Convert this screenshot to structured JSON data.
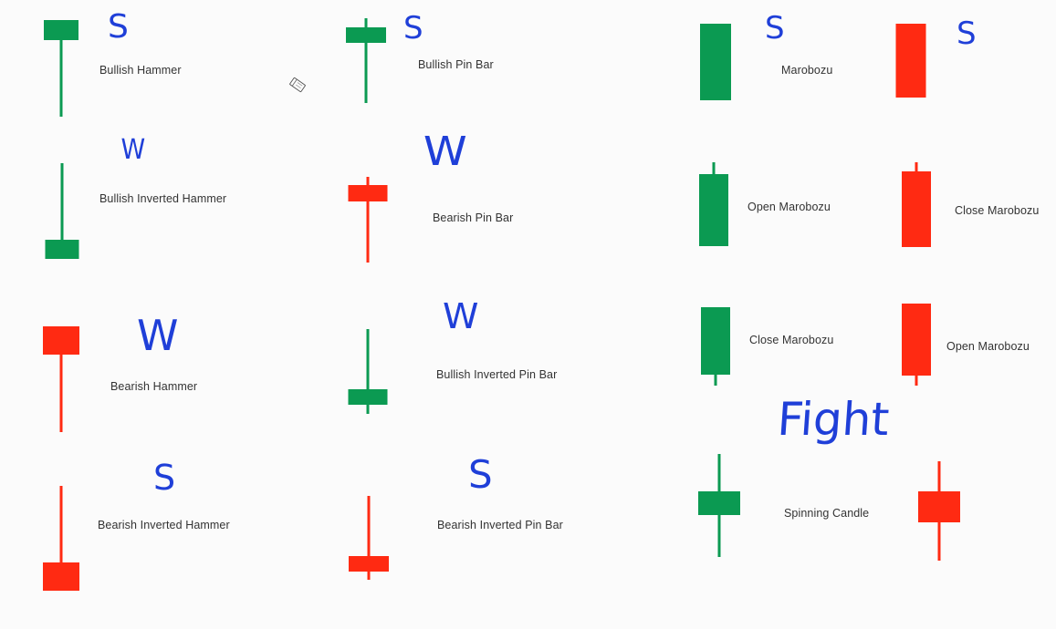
{
  "colors": {
    "bullish": "#0b9a52",
    "bearish": "#ff2a12",
    "ink": "#1f3fd8",
    "text": "#333333",
    "background": "#fbfbfb"
  },
  "labels": {
    "bullish_hammer": "Bullish Hammer",
    "bullish_pin_bar": "Bullish Pin Bar",
    "marobozu": "Marobozu",
    "bullish_inverted_hammer": "Bullish Inverted Hammer",
    "bearish_pin_bar": "Bearish Pin Bar",
    "open_marobozu_1": "Open Marobozu",
    "close_marobozu_1": "Close Marobozu",
    "bearish_hammer": "Bearish Hammer",
    "bullish_inverted_pin_bar": "Bullish Inverted Pin Bar",
    "close_marobozu_2": "Close Marobozu",
    "open_marobozu_2": "Open Marobozu",
    "bearish_inverted_hammer": "Bearish Inverted Hammer",
    "bearish_inverted_pin_bar": "Bearish Inverted Pin Bar",
    "spinning_candle": "Spinning Candle"
  },
  "annotations": {
    "a1": "S",
    "a2": "S",
    "a3": "S",
    "a4": "S",
    "a5": "W",
    "a6": "W",
    "a7": "W",
    "a8": "W",
    "a9": "S",
    "a10": "S",
    "fight": "Fight"
  },
  "candles": [
    {
      "name": "bullish-hammer-candle",
      "color": "bullish"
    },
    {
      "name": "bullish-pin-bar-candle",
      "color": "bullish"
    },
    {
      "name": "marobozu-bullish-candle",
      "color": "bullish"
    },
    {
      "name": "marobozu-bearish-candle",
      "color": "bearish"
    },
    {
      "name": "bullish-inverted-hammer-candle",
      "color": "bullish"
    },
    {
      "name": "bearish-pin-bar-candle",
      "color": "bearish"
    },
    {
      "name": "open-marobozu-bullish-candle",
      "color": "bullish"
    },
    {
      "name": "close-marobozu-bearish-candle",
      "color": "bearish"
    },
    {
      "name": "bearish-hammer-candle",
      "color": "bearish"
    },
    {
      "name": "bullish-inverted-pin-bar-candle",
      "color": "bullish"
    },
    {
      "name": "close-marobozu-bullish-candle",
      "color": "bullish"
    },
    {
      "name": "open-marobozu-bearish-candle",
      "color": "bearish"
    },
    {
      "name": "bearish-inverted-hammer-candle",
      "color": "bearish"
    },
    {
      "name": "bearish-inverted-pin-bar-candle",
      "color": "bearish"
    },
    {
      "name": "spinning-candle-bullish",
      "color": "bullish"
    },
    {
      "name": "spinning-candle-bearish",
      "color": "bearish"
    }
  ]
}
